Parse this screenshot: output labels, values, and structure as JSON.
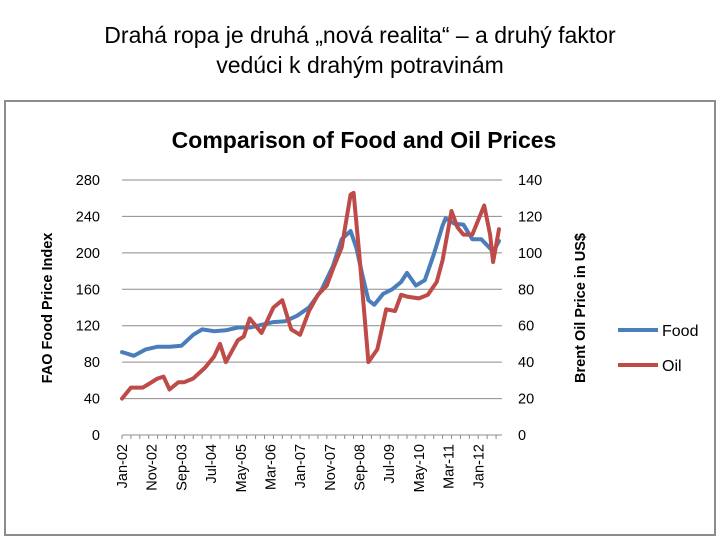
{
  "slide": {
    "title_line1": "Drahá ropa je druhá „nová realita“ – a druhý faktor",
    "title_line2": "vedúci k drahým potravinám"
  },
  "chart_data": {
    "type": "line",
    "title": "Comparison of Food and Oil Prices",
    "ylabel": "FAO Food Price Index",
    "y2label": "Brent Oil Price in US$",
    "ylim": [
      0,
      280
    ],
    "y2lim": [
      0,
      140
    ],
    "yticks": [
      "0",
      "40",
      "80",
      "120",
      "160",
      "200",
      "240",
      "280"
    ],
    "y2ticks": [
      "0",
      "20",
      "40",
      "60",
      "80",
      "100",
      "120",
      "140"
    ],
    "grid": true,
    "legend_position": "right",
    "xtick_labels": [
      "Jan-02",
      "Nov-02",
      "Sep-03",
      "Jul-04",
      "May-05",
      "Mar-06",
      "Jan-07",
      "Nov-07",
      "Sep-08",
      "Jul-09",
      "May-10",
      "Mar-11",
      "Jan-12"
    ],
    "series": [
      {
        "name": "Food",
        "axis": "left",
        "color": "#4a7ebb",
        "points": [
          [
            "2002-01",
            91
          ],
          [
            "2002-05",
            87
          ],
          [
            "2002-09",
            94
          ],
          [
            "2003-01",
            97
          ],
          [
            "2003-05",
            97
          ],
          [
            "2003-09",
            98
          ],
          [
            "2004-01",
            110
          ],
          [
            "2004-04",
            116
          ],
          [
            "2004-08",
            114
          ],
          [
            "2004-12",
            115
          ],
          [
            "2005-04",
            118
          ],
          [
            "2005-08",
            118
          ],
          [
            "2005-12",
            121
          ],
          [
            "2006-04",
            124
          ],
          [
            "2006-08",
            125
          ],
          [
            "2006-12",
            131
          ],
          [
            "2007-04",
            140
          ],
          [
            "2007-08",
            158
          ],
          [
            "2007-12",
            185
          ],
          [
            "2008-03",
            215
          ],
          [
            "2008-06",
            224
          ],
          [
            "2008-08",
            205
          ],
          [
            "2008-10",
            175
          ],
          [
            "2008-12",
            148
          ],
          [
            "2009-02",
            143
          ],
          [
            "2009-05",
            155
          ],
          [
            "2009-08",
            160
          ],
          [
            "2009-11",
            168
          ],
          [
            "2010-01",
            178
          ],
          [
            "2010-04",
            164
          ],
          [
            "2010-07",
            170
          ],
          [
            "2010-10",
            198
          ],
          [
            "2011-01",
            230
          ],
          [
            "2011-02",
            238
          ],
          [
            "2011-05",
            232
          ],
          [
            "2011-08",
            231
          ],
          [
            "2011-11",
            215
          ],
          [
            "2012-02",
            215
          ],
          [
            "2012-05",
            205
          ],
          [
            "2012-06",
            201
          ],
          [
            "2012-08",
            213
          ]
        ]
      },
      {
        "name": "Oil",
        "axis": "right",
        "color": "#be4b48",
        "points": [
          [
            "2002-01",
            20
          ],
          [
            "2002-04",
            26
          ],
          [
            "2002-08",
            26
          ],
          [
            "2002-10",
            28
          ],
          [
            "2003-01",
            31
          ],
          [
            "2003-03",
            32
          ],
          [
            "2003-05",
            25
          ],
          [
            "2003-08",
            29
          ],
          [
            "2003-10",
            29
          ],
          [
            "2004-01",
            31
          ],
          [
            "2004-05",
            37
          ],
          [
            "2004-08",
            43
          ],
          [
            "2004-10",
            50
          ],
          [
            "2004-12",
            40
          ],
          [
            "2005-04",
            52
          ],
          [
            "2005-06",
            54
          ],
          [
            "2005-08",
            64
          ],
          [
            "2005-12",
            56
          ],
          [
            "2006-04",
            70
          ],
          [
            "2006-07",
            74
          ],
          [
            "2006-10",
            58
          ],
          [
            "2007-01",
            55
          ],
          [
            "2007-04",
            68
          ],
          [
            "2007-07",
            77
          ],
          [
            "2007-10",
            82
          ],
          [
            "2007-12",
            91
          ],
          [
            "2008-03",
            103
          ],
          [
            "2008-06",
            132
          ],
          [
            "2008-07",
            133
          ],
          [
            "2008-09",
            98
          ],
          [
            "2008-12",
            40
          ],
          [
            "2009-03",
            47
          ],
          [
            "2009-06",
            69
          ],
          [
            "2009-09",
            68
          ],
          [
            "2009-11",
            77
          ],
          [
            "2010-01",
            76
          ],
          [
            "2010-05",
            75
          ],
          [
            "2010-08",
            77
          ],
          [
            "2010-11",
            84
          ],
          [
            "2011-01",
            96
          ],
          [
            "2011-04",
            123
          ],
          [
            "2011-06",
            114
          ],
          [
            "2011-08",
            110
          ],
          [
            "2011-11",
            110
          ],
          [
            "2012-03",
            126
          ],
          [
            "2012-05",
            110
          ],
          [
            "2012-06",
            95
          ],
          [
            "2012-08",
            113
          ]
        ]
      }
    ]
  }
}
